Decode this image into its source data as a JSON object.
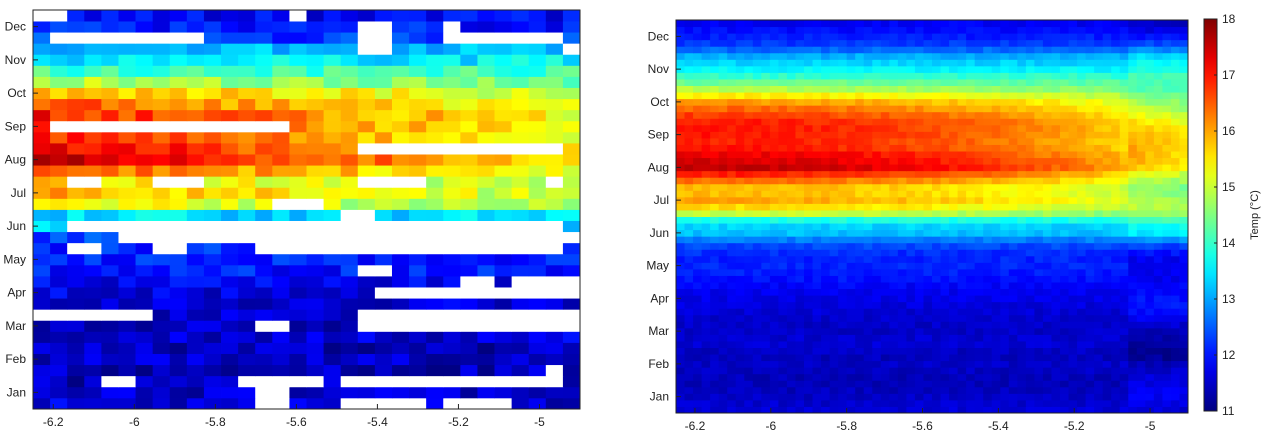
{
  "chart_data": [
    {
      "type": "heatmap",
      "title": "",
      "xlabel": "",
      "ylabel": "",
      "x_ticks": [
        -6.2,
        -6,
        -5.8,
        -5.6,
        -5.4,
        -5.2,
        -5
      ],
      "x_tick_labels": [
        "-6.2",
        "-6",
        "-5.8",
        "-5.6",
        "-5.4",
        "-5.2",
        "-5"
      ],
      "xlim": [
        -6.25,
        -4.9
      ],
      "y_ticks": [
        "Jan",
        "Feb",
        "Mar",
        "Apr",
        "May",
        "Jun",
        "Jul",
        "Aug",
        "Sep",
        "Oct",
        "Nov",
        "Dec"
      ],
      "rows": 36,
      "cols": 32,
      "missing": "white",
      "profile_by_row": [
        11.6,
        11.5,
        11.4,
        11.4,
        11.5,
        11.4,
        11.6,
        11.5,
        11.5,
        11.6,
        11.7,
        11.8,
        12.0,
        12.1,
        12.1,
        12.4,
        13.2,
        13.4,
        15.4,
        16.0,
        15.7,
        16.6,
        17.6,
        17.3,
        16.9,
        17.0,
        17.0,
        16.6,
        16.0,
        14.9,
        14.1,
        13.5,
        13.1,
        12.3,
        12.0,
        11.8
      ],
      "east_trend_per_col": -0.22,
      "value_range": [
        11,
        18
      ]
    },
    {
      "type": "heatmap",
      "title": "",
      "xlabel": "",
      "ylabel": "",
      "x_ticks": [
        -6.2,
        -6,
        -5.8,
        -5.6,
        -5.4,
        -5.2,
        -5
      ],
      "x_tick_labels": [
        "-6.2",
        "-6",
        "-5.8",
        "-5.6",
        "-5.4",
        "-5.2",
        "-5"
      ],
      "xlim": [
        -6.25,
        -4.9
      ],
      "y_ticks": [
        "Jan",
        "Feb",
        "Mar",
        "Apr",
        "May",
        "Jun",
        "Jul",
        "Aug",
        "Sep",
        "Oct",
        "Nov",
        "Dec"
      ],
      "rows": 60,
      "cols": 60,
      "missing": "none",
      "value_range": [
        11,
        18
      ],
      "colorbar": {
        "label": "Temp (°C)",
        "ticks": [
          "11",
          "12",
          "13",
          "14",
          "15",
          "16",
          "17",
          "18"
        ],
        "range": [
          11,
          18
        ],
        "colormap": "jet"
      }
    }
  ]
}
